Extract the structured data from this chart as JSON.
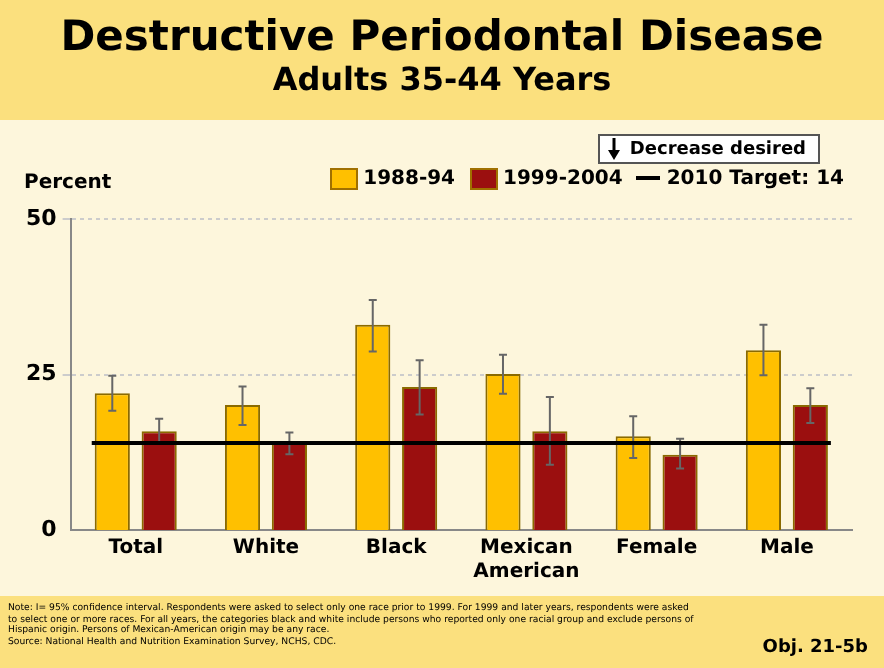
{
  "chart_data": {
    "type": "bar",
    "title": "Destructive Periodontal Disease",
    "subtitle": "Adults 35-44 Years",
    "ylabel": "Percent",
    "categories": [
      "Total",
      "White",
      "Black",
      "Mexican American",
      "Female",
      "Male"
    ],
    "series": [
      {
        "name": "1988-94",
        "color": "#ffc000",
        "values": [
          22,
          20.1,
          33,
          25.1,
          15.1,
          28.9
        ],
        "errors": [
          [
            19.2,
            24.8
          ],
          [
            16.9,
            23.1
          ],
          [
            28.7,
            37
          ],
          [
            21.9,
            28.2
          ],
          [
            11.6,
            18.3
          ],
          [
            24.9,
            33
          ]
        ]
      },
      {
        "name": "1999-2004",
        "color": "#9b0f0f",
        "values": [
          15.9,
          14.2,
          23,
          15.9,
          12.1,
          20.1
        ],
        "errors": [
          [
            14,
            17.9
          ],
          [
            12.2,
            15.7
          ],
          [
            18.6,
            27.3
          ],
          [
            10.5,
            21.4
          ],
          [
            9.9,
            14.7
          ],
          [
            17.2,
            22.8
          ]
        ]
      }
    ],
    "ylim": [
      0,
      50
    ],
    "yticks": [
      0,
      25,
      50
    ],
    "grid": "y",
    "legend": "top right",
    "ref_lines": [
      {
        "axis": "y",
        "value": 14,
        "label": "2010 Target: 14",
        "color": "#000000"
      }
    ],
    "annotations": [
      "Decrease desired",
      "Note: I= 95% confidence interval. Respondents were asked to select only one race prior to 1999. For 1999 and later years, respondents were asked to select one or more races. For all years, the categories black and white include persons who reported only one racial group and exclude persons of Hispanic origin. Persons of Mexican-American origin may be any race.",
      "Source: National Health and Nutrition Examination Survey, NCHS, CDC.",
      "Obj. 21-5b"
    ]
  }
}
